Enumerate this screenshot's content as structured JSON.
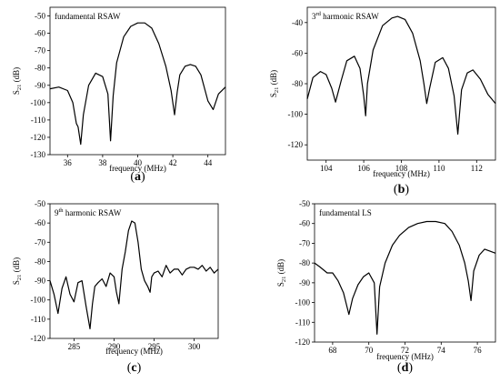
{
  "chart_data": [
    {
      "type": "line",
      "panel_label": "(a)",
      "annotation": "fundamental RSAW",
      "xlabel": "frequency (MHz)",
      "ylabel": "S21 (dB)",
      "ylabel_main": "S",
      "ylabel_sub": "21",
      "ylabel_tail": " (dB)",
      "xlim": [
        35,
        45
      ],
      "ylim": [
        -130,
        -45
      ],
      "xticks": [
        36,
        38,
        40,
        42,
        44
      ],
      "yticks": [
        -130,
        -120,
        -110,
        -100,
        -90,
        -80,
        -70,
        -60,
        -50
      ],
      "series": [
        {
          "x": [
            35,
            35.5,
            36,
            36.3,
            36.5,
            36.6,
            36.75,
            36.9,
            37.2,
            37.6,
            38,
            38.3,
            38.45,
            38.6,
            38.8,
            39.2,
            39.6,
            40,
            40.4,
            40.8,
            41.2,
            41.6,
            41.9,
            42.1,
            42.25,
            42.4,
            42.7,
            43,
            43.3,
            43.6,
            44,
            44.3,
            44.6,
            45
          ],
          "y": [
            -92,
            -91,
            -93,
            -100,
            -112,
            -114,
            -124,
            -107,
            -90,
            -83,
            -85,
            -95,
            -122,
            -96,
            -77,
            -62,
            -56,
            -54,
            -54,
            -57,
            -66,
            -79,
            -93,
            -107,
            -94,
            -84,
            -79,
            -78,
            -79,
            -84,
            -99,
            -104,
            -95,
            -91
          ]
        }
      ]
    },
    {
      "type": "line",
      "panel_label": "(b)",
      "annotation_main": "3",
      "annotation_sup": "rd",
      "annotation_tail": " harmonic RSAW",
      "xlabel": "frequency (MHz)",
      "ylabel": "S21 (dB)",
      "ylabel_main": "S",
      "ylabel_sub": "21",
      "ylabel_tail": " (dB)",
      "xlim": [
        103,
        113
      ],
      "ylim": [
        -130,
        -30
      ],
      "xticks": [
        104,
        106,
        108,
        110,
        112
      ],
      "yticks": [
        -120,
        -100,
        -80,
        -60,
        -40
      ],
      "series": [
        {
          "x": [
            103,
            103.3,
            103.7,
            104,
            104.3,
            104.5,
            104.8,
            105.1,
            105.5,
            105.8,
            106,
            106.1,
            106.2,
            106.5,
            107,
            107.5,
            107.8,
            108.2,
            108.6,
            109,
            109.2,
            109.35,
            109.5,
            109.8,
            110.2,
            110.5,
            110.8,
            111,
            111.2,
            111.5,
            111.8,
            112.2,
            112.6,
            113
          ],
          "y": [
            -90,
            -76,
            -72,
            -74,
            -83,
            -92,
            -78,
            -65,
            -62,
            -70,
            -88,
            -101,
            -80,
            -58,
            -42,
            -37,
            -36,
            -38,
            -47,
            -65,
            -80,
            -93,
            -83,
            -66,
            -63,
            -70,
            -88,
            -113,
            -84,
            -73,
            -71,
            -77,
            -87,
            -93
          ]
        }
      ]
    },
    {
      "type": "line",
      "panel_label": "(c)",
      "annotation_main": "9",
      "annotation_sup": "th",
      "annotation_tail": " harmonic RSAW",
      "xlabel": "frequency (MHz)",
      "ylabel": "S21 (dB)",
      "ylabel_main": "S",
      "ylabel_sub": "21",
      "ylabel_tail": " (dB)",
      "xlim": [
        282,
        303
      ],
      "ylim": [
        -120,
        -50
      ],
      "xticks": [
        285,
        290,
        295,
        300
      ],
      "yticks": [
        -120,
        -110,
        -100,
        -90,
        -80,
        -70,
        -60,
        -50
      ],
      "series": [
        {
          "x": [
            282,
            282.5,
            283,
            283.5,
            284,
            284.5,
            285,
            285.5,
            286,
            286.5,
            287,
            287.3,
            287.6,
            288,
            288.5,
            289,
            289.5,
            290,
            290.3,
            290.6,
            291,
            291.4,
            291.8,
            292.2,
            292.6,
            293,
            293.4,
            293.8,
            294.2,
            294.5,
            294.7,
            295,
            295.5,
            296,
            296.5,
            297,
            297.5,
            298,
            298.5,
            299,
            299.5,
            300,
            300.5,
            301,
            301.5,
            302,
            302.5,
            303
          ],
          "y": [
            -90,
            -97,
            -107,
            -94,
            -88,
            -97,
            -101,
            -91,
            -90,
            -103,
            -115,
            -102,
            -93,
            -91,
            -89,
            -93,
            -86,
            -88,
            -96,
            -102,
            -84,
            -75,
            -64,
            -59,
            -60,
            -70,
            -84,
            -90,
            -93,
            -96,
            -88,
            -86,
            -85,
            -88,
            -82,
            -86,
            -84,
            -84,
            -87,
            -84,
            -83,
            -83,
            -84,
            -82,
            -85,
            -83,
            -86,
            -84
          ]
        }
      ]
    },
    {
      "type": "line",
      "panel_label": "(d)",
      "annotation": "fundamental LS",
      "xlabel": "frequency (MHz)",
      "ylabel": "S21 (dB)",
      "ylabel_main": "S",
      "ylabel_sub": "21",
      "ylabel_tail": " (dB)",
      "xlim": [
        67,
        77
      ],
      "ylim": [
        -120,
        -50
      ],
      "xticks": [
        68,
        70,
        72,
        74,
        76
      ],
      "yticks": [
        -120,
        -110,
        -100,
        -90,
        -80,
        -70,
        -60,
        -50
      ],
      "series": [
        {
          "x": [
            67,
            67.3,
            67.7,
            68,
            68.3,
            68.6,
            68.9,
            69.1,
            69.4,
            69.7,
            70,
            70.3,
            70.45,
            70.6,
            70.9,
            71.3,
            71.7,
            72.2,
            72.7,
            73.2,
            73.7,
            74.2,
            74.6,
            75,
            75.3,
            75.5,
            75.65,
            75.8,
            76.1,
            76.4,
            76.7,
            77
          ],
          "y": [
            -80,
            -82,
            -85,
            -85,
            -89,
            -95,
            -106,
            -98,
            -91,
            -87,
            -85,
            -90,
            -116,
            -92,
            -80,
            -71,
            -66,
            -62,
            -60,
            -59,
            -59,
            -60,
            -64,
            -71,
            -80,
            -89,
            -99,
            -84,
            -76,
            -73,
            -74,
            -75
          ]
        }
      ]
    }
  ]
}
